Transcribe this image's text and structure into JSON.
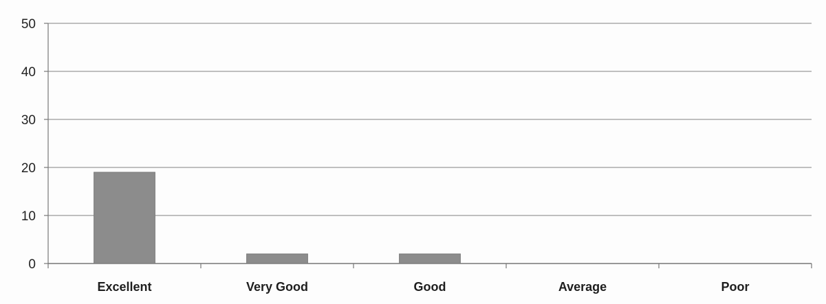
{
  "chart_data": {
    "type": "bar",
    "title": "",
    "xlabel": "",
    "ylabel": "",
    "categories": [
      "Excellent",
      "Very Good",
      "Good",
      "Average",
      "Poor"
    ],
    "values": [
      19,
      2,
      2,
      0,
      0
    ],
    "ylim": [
      0,
      50
    ],
    "yticks": [
      0,
      10,
      20,
      30,
      40,
      50
    ],
    "grid": true,
    "legend": "none",
    "bar_color": "#8c8c8c",
    "grid_color": "#9a9a9a"
  }
}
